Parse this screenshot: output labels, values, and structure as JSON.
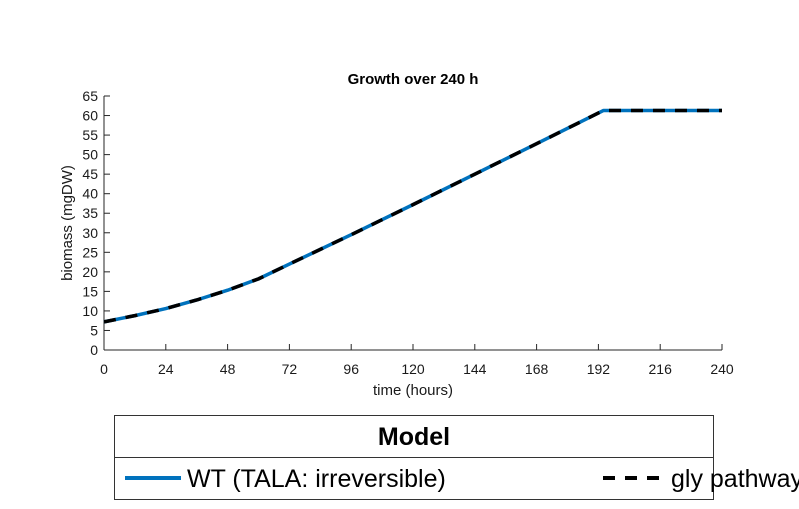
{
  "chart_data": {
    "type": "line",
    "title": "Growth over 240 h",
    "xlabel": "time (hours)",
    "ylabel": "biomass (mgDW)",
    "xlim": [
      0,
      240
    ],
    "ylim": [
      0,
      65
    ],
    "xticks": [
      0,
      24,
      48,
      72,
      96,
      120,
      144,
      168,
      192,
      216,
      240
    ],
    "yticks": [
      0,
      5,
      10,
      15,
      20,
      25,
      30,
      35,
      40,
      45,
      50,
      55,
      60,
      65
    ],
    "grid": false,
    "legend_placement": "below",
    "legend_title": "Model",
    "series": [
      {
        "name": "WT (TALA: irreversible)",
        "color": "#0072BD",
        "style": "solid",
        "x": [
          0,
          12,
          24,
          36,
          48,
          60,
          72,
          96,
          120,
          144,
          168,
          194,
          216,
          240
        ],
        "y": [
          7.2,
          8.8,
          10.6,
          12.8,
          15.3,
          18.2,
          22.0,
          29.5,
          37.2,
          45.0,
          52.8,
          61.3,
          61.3,
          61.3
        ]
      },
      {
        "name": "gly pathway",
        "color": "#000000",
        "style": "dashed",
        "x": [
          0,
          12,
          24,
          36,
          48,
          60,
          72,
          96,
          120,
          144,
          168,
          194,
          216,
          240
        ],
        "y": [
          7.2,
          8.8,
          10.6,
          12.8,
          15.3,
          18.2,
          22.0,
          29.5,
          37.2,
          45.0,
          52.8,
          61.3,
          61.3,
          61.3
        ]
      }
    ]
  }
}
